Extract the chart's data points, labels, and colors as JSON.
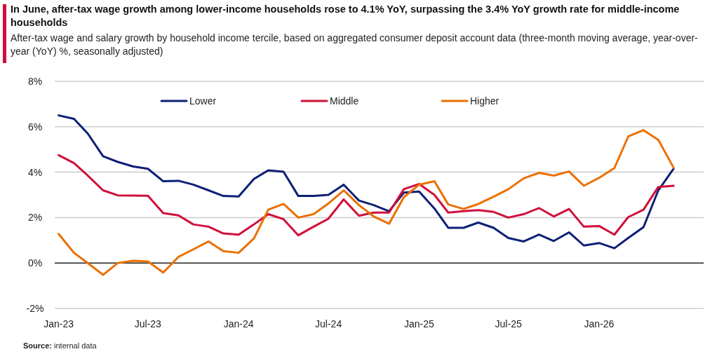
{
  "chart_data": {
    "type": "line",
    "title": "In June, after-tax wage growth among lower-income households rose to 4.1% YoY, surpassing the 3.4% YoY growth rate for middle-income households",
    "subtitle": "After-tax wage and salary growth by household income tercile, based on aggregated consumer deposit account data (three-month moving average, year-over-year (YoY) %, seasonally adjusted)",
    "annotations": [
      "Source: internal data"
    ],
    "x": [
      "2023-01",
      "2023-02",
      "2023-03",
      "2023-04",
      "2023-05",
      "2023-06",
      "2023-07",
      "2023-08",
      "2023-09",
      "2023-10",
      "2023-11",
      "2023-12",
      "2024-01",
      "2024-02",
      "2024-03",
      "2024-04",
      "2024-05",
      "2024-06",
      "2024-07",
      "2024-08",
      "2024-09",
      "2024-10",
      "2024-11",
      "2024-12",
      "2025-01",
      "2025-02",
      "2025-03",
      "2025-04",
      "2025-05",
      "2025-06",
      "2025-07",
      "2025-08",
      "2025-09",
      "2025-10",
      "2025-11",
      "2025-12",
      "2026-01",
      "2026-02",
      "2026-03",
      "2026-04",
      "2026-05",
      "2026-06"
    ],
    "series": [
      {
        "name": "Lower",
        "color": "#0c2074",
        "values": [
          6.5,
          6.35,
          5.7,
          4.7,
          4.45,
          4.25,
          4.15,
          3.6,
          3.62,
          3.45,
          3.2,
          2.95,
          2.93,
          3.7,
          4.08,
          4.02,
          2.95,
          2.95,
          3.0,
          3.45,
          2.75,
          2.55,
          2.28,
          3.1,
          3.15,
          2.4,
          1.55,
          1.55,
          1.78,
          1.55,
          1.1,
          0.95,
          1.25,
          0.97,
          1.35,
          0.77,
          0.88,
          0.65,
          1.1,
          1.58,
          3.2,
          4.15
        ]
      },
      {
        "name": "Middle",
        "color": "#d0103a",
        "values": [
          4.75,
          4.4,
          3.85,
          3.2,
          2.98,
          2.97,
          2.96,
          2.2,
          2.1,
          1.7,
          1.6,
          1.3,
          1.25,
          1.7,
          2.15,
          1.93,
          1.22,
          1.6,
          1.95,
          2.8,
          2.08,
          2.22,
          2.22,
          3.25,
          3.48,
          3.0,
          2.22,
          2.28,
          2.33,
          2.25,
          2.0,
          2.15,
          2.42,
          2.05,
          2.38,
          1.6,
          1.63,
          1.25,
          2.02,
          2.35,
          3.35,
          3.4
        ]
      },
      {
        "name": "Higher",
        "color": "#ea7000",
        "values": [
          1.28,
          0.45,
          0.0,
          -0.52,
          0.0,
          0.1,
          0.07,
          -0.42,
          0.27,
          0.6,
          0.95,
          0.52,
          0.45,
          1.08,
          2.35,
          2.6,
          2.0,
          2.15,
          2.62,
          3.2,
          2.55,
          2.05,
          1.73,
          2.9,
          3.45,
          3.6,
          2.58,
          2.38,
          2.6,
          2.92,
          3.25,
          3.73,
          3.97,
          3.85,
          4.03,
          3.4,
          3.75,
          4.18,
          5.57,
          5.85,
          5.42,
          4.2
        ]
      }
    ],
    "xlim": [
      "2022-12-24",
      "2026-08-01"
    ],
    "xticks": [
      {
        "value": "2023-01",
        "label": "Jan-23"
      },
      {
        "value": "2023-07",
        "label": "Jul-23"
      },
      {
        "value": "2024-01",
        "label": "Jan-24"
      },
      {
        "value": "2024-07",
        "label": "Jul-24"
      },
      {
        "value": "2025-01",
        "label": "Jan-25"
      },
      {
        "value": "2025-07",
        "label": "Jul-25"
      },
      {
        "value": "2026-01",
        "label": "Jan-26"
      }
    ],
    "ylim": [
      -2,
      8
    ],
    "yticks": [
      {
        "value": -2,
        "label": "-2%"
      },
      {
        "value": 0,
        "label": "0%"
      },
      {
        "value": 2,
        "label": "2%"
      },
      {
        "value": 4,
        "label": "4%"
      },
      {
        "value": 6,
        "label": "6%"
      },
      {
        "value": 8,
        "label": "8%"
      }
    ],
    "grid": "y",
    "legend": "top",
    "line_style": "solid",
    "marker": "none"
  }
}
